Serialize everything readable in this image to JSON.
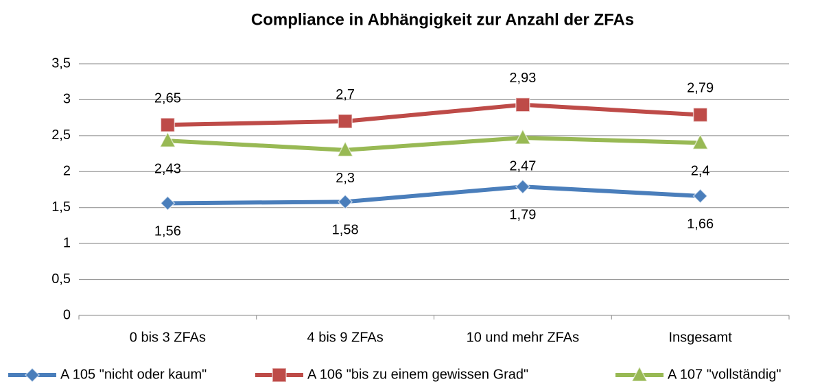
{
  "chart_data": {
    "type": "line",
    "title": "Compliance in Abhängigkeit zur Anzahl der  ZFAs",
    "categories": [
      "0 bis 3 ZFAs",
      "4 bis 9 ZFAs",
      "10 und mehr ZFAs",
      "Insgesamt"
    ],
    "series": [
      {
        "name": "A 105 \"nicht oder kaum\"",
        "color": "#4a7ebb",
        "marker": "diamond",
        "values": [
          1.56,
          1.58,
          1.79,
          1.66
        ],
        "value_labels": [
          "1,56",
          "1,58",
          "1,79",
          "1,66"
        ]
      },
      {
        "name": "A 106 \"bis zu einem gewissen Grad\"",
        "color": "#be4b48",
        "marker": "square",
        "values": [
          2.65,
          2.7,
          2.93,
          2.79
        ],
        "value_labels": [
          "2,65",
          "2,7",
          "2,93",
          "2,79"
        ]
      },
      {
        "name": "A 107 \"vollständig\"",
        "color": "#98b954",
        "marker": "triangle",
        "values": [
          2.43,
          2.3,
          2.47,
          2.4
        ],
        "value_labels": [
          "2,43",
          "2,3",
          "2,47",
          "2,4"
        ]
      }
    ],
    "ylim": [
      0,
      3.5
    ],
    "yticks": [
      0,
      {
        "value": 0.5,
        "label": "0,5"
      },
      1,
      {
        "value": 1.5,
        "label": "1,5"
      },
      2,
      {
        "value": 2.5,
        "label": "2,5"
      },
      3,
      {
        "value": 3.5,
        "label": "3,5"
      }
    ],
    "grid": true,
    "legend": "bottom"
  }
}
